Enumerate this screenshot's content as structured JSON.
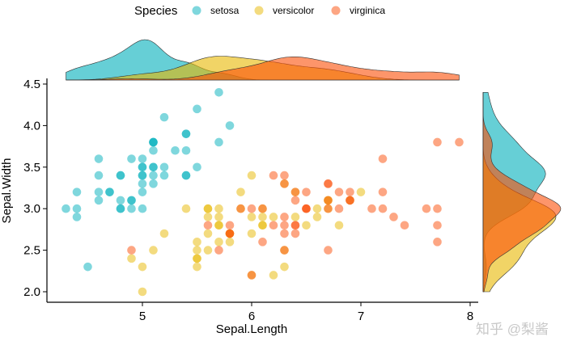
{
  "chart_data": {
    "type": "scatter",
    "xlabel": "Sepal.Length",
    "ylabel": "Sepal.Width",
    "xlim": [
      4.3,
      8.05
    ],
    "ylim": [
      1.9,
      4.5
    ],
    "xticks": [
      "5",
      "6",
      "7",
      "8"
    ],
    "yticks": [
      "2.0",
      "2.5",
      "3.0",
      "3.5",
      "4.0",
      "4.5"
    ],
    "grid": false,
    "legend": {
      "title": "Species",
      "placement": "top"
    },
    "marginal": "density",
    "series": [
      {
        "name": "setosa",
        "color": "#00AFBB",
        "x": [
          5.1,
          4.9,
          4.7,
          4.6,
          5.0,
          5.4,
          4.6,
          5.0,
          4.4,
          4.9,
          5.4,
          4.8,
          4.8,
          4.3,
          5.8,
          5.7,
          5.4,
          5.1,
          5.7,
          5.1,
          5.4,
          5.1,
          4.6,
          5.1,
          4.8,
          5.0,
          5.0,
          5.2,
          5.2,
          4.7,
          4.8,
          5.4,
          5.2,
          5.5,
          4.9,
          5.0,
          5.5,
          4.9,
          4.4,
          5.1,
          5.0,
          4.5,
          4.4,
          5.0,
          5.1,
          4.8,
          5.1,
          4.6,
          5.3,
          5.0
        ],
        "y": [
          3.5,
          3.0,
          3.2,
          3.1,
          3.6,
          3.9,
          3.4,
          3.4,
          2.9,
          3.1,
          3.7,
          3.4,
          3.0,
          3.0,
          4.0,
          4.4,
          3.9,
          3.5,
          3.8,
          3.8,
          3.4,
          3.7,
          3.6,
          3.3,
          3.4,
          3.0,
          3.4,
          3.5,
          3.4,
          3.2,
          3.1,
          3.4,
          4.1,
          4.2,
          3.1,
          3.2,
          3.5,
          3.6,
          3.0,
          3.4,
          3.5,
          2.3,
          3.2,
          3.5,
          3.8,
          3.0,
          3.8,
          3.2,
          3.7,
          3.3
        ]
      },
      {
        "name": "versicolor",
        "color": "#E7B800",
        "x": [
          7.0,
          6.4,
          6.9,
          5.5,
          6.5,
          5.7,
          6.3,
          4.9,
          6.6,
          5.2,
          5.0,
          5.9,
          6.0,
          6.1,
          5.6,
          6.7,
          5.6,
          5.8,
          6.2,
          5.6,
          5.9,
          6.1,
          6.3,
          6.1,
          6.4,
          6.6,
          6.8,
          6.7,
          6.0,
          5.7,
          5.5,
          5.5,
          5.8,
          6.0,
          5.4,
          6.0,
          6.7,
          6.3,
          5.6,
          5.5,
          5.5,
          6.1,
          5.8,
          5.0,
          5.6,
          5.7,
          5.7,
          6.2,
          5.1,
          5.7
        ],
        "y": [
          3.2,
          3.2,
          3.1,
          2.3,
          2.8,
          2.8,
          3.3,
          2.4,
          2.9,
          2.7,
          2.0,
          3.0,
          2.2,
          2.9,
          2.9,
          3.1,
          3.0,
          2.7,
          2.2,
          2.5,
          3.2,
          2.8,
          2.5,
          2.8,
          2.9,
          3.0,
          2.8,
          3.0,
          2.9,
          2.6,
          2.4,
          2.4,
          2.7,
          2.7,
          3.0,
          3.4,
          3.1,
          2.3,
          3.0,
          2.5,
          2.6,
          3.0,
          2.6,
          2.3,
          2.7,
          3.0,
          2.9,
          2.9,
          2.5,
          2.8
        ]
      },
      {
        "name": "virginica",
        "color": "#FC4E07",
        "x": [
          6.3,
          5.8,
          7.1,
          6.3,
          6.5,
          7.6,
          4.9,
          7.3,
          6.7,
          7.2,
          6.5,
          6.4,
          6.8,
          5.7,
          5.8,
          6.4,
          6.5,
          7.7,
          7.7,
          6.0,
          6.9,
          5.6,
          7.7,
          6.3,
          6.7,
          7.2,
          6.2,
          6.1,
          6.4,
          7.2,
          7.4,
          7.9,
          6.4,
          6.3,
          6.1,
          7.7,
          6.3,
          6.4,
          6.0,
          6.9,
          6.7,
          6.9,
          5.8,
          6.8,
          6.7,
          6.7,
          6.3,
          6.5,
          6.2,
          5.9
        ],
        "y": [
          3.3,
          2.7,
          3.0,
          2.9,
          3.0,
          3.0,
          2.5,
          2.9,
          2.5,
          3.6,
          3.2,
          2.7,
          3.0,
          2.5,
          2.8,
          3.2,
          3.0,
          3.8,
          2.6,
          2.2,
          3.2,
          2.8,
          2.8,
          2.7,
          3.3,
          3.2,
          2.8,
          3.0,
          2.8,
          3.0,
          2.8,
          3.8,
          2.8,
          2.8,
          2.6,
          3.0,
          3.4,
          3.1,
          3.0,
          3.1,
          3.1,
          3.1,
          2.7,
          3.2,
          3.3,
          3.0,
          2.5,
          3.0,
          3.4,
          3.0
        ]
      }
    ]
  },
  "watermark": "知乎 @梨酱"
}
